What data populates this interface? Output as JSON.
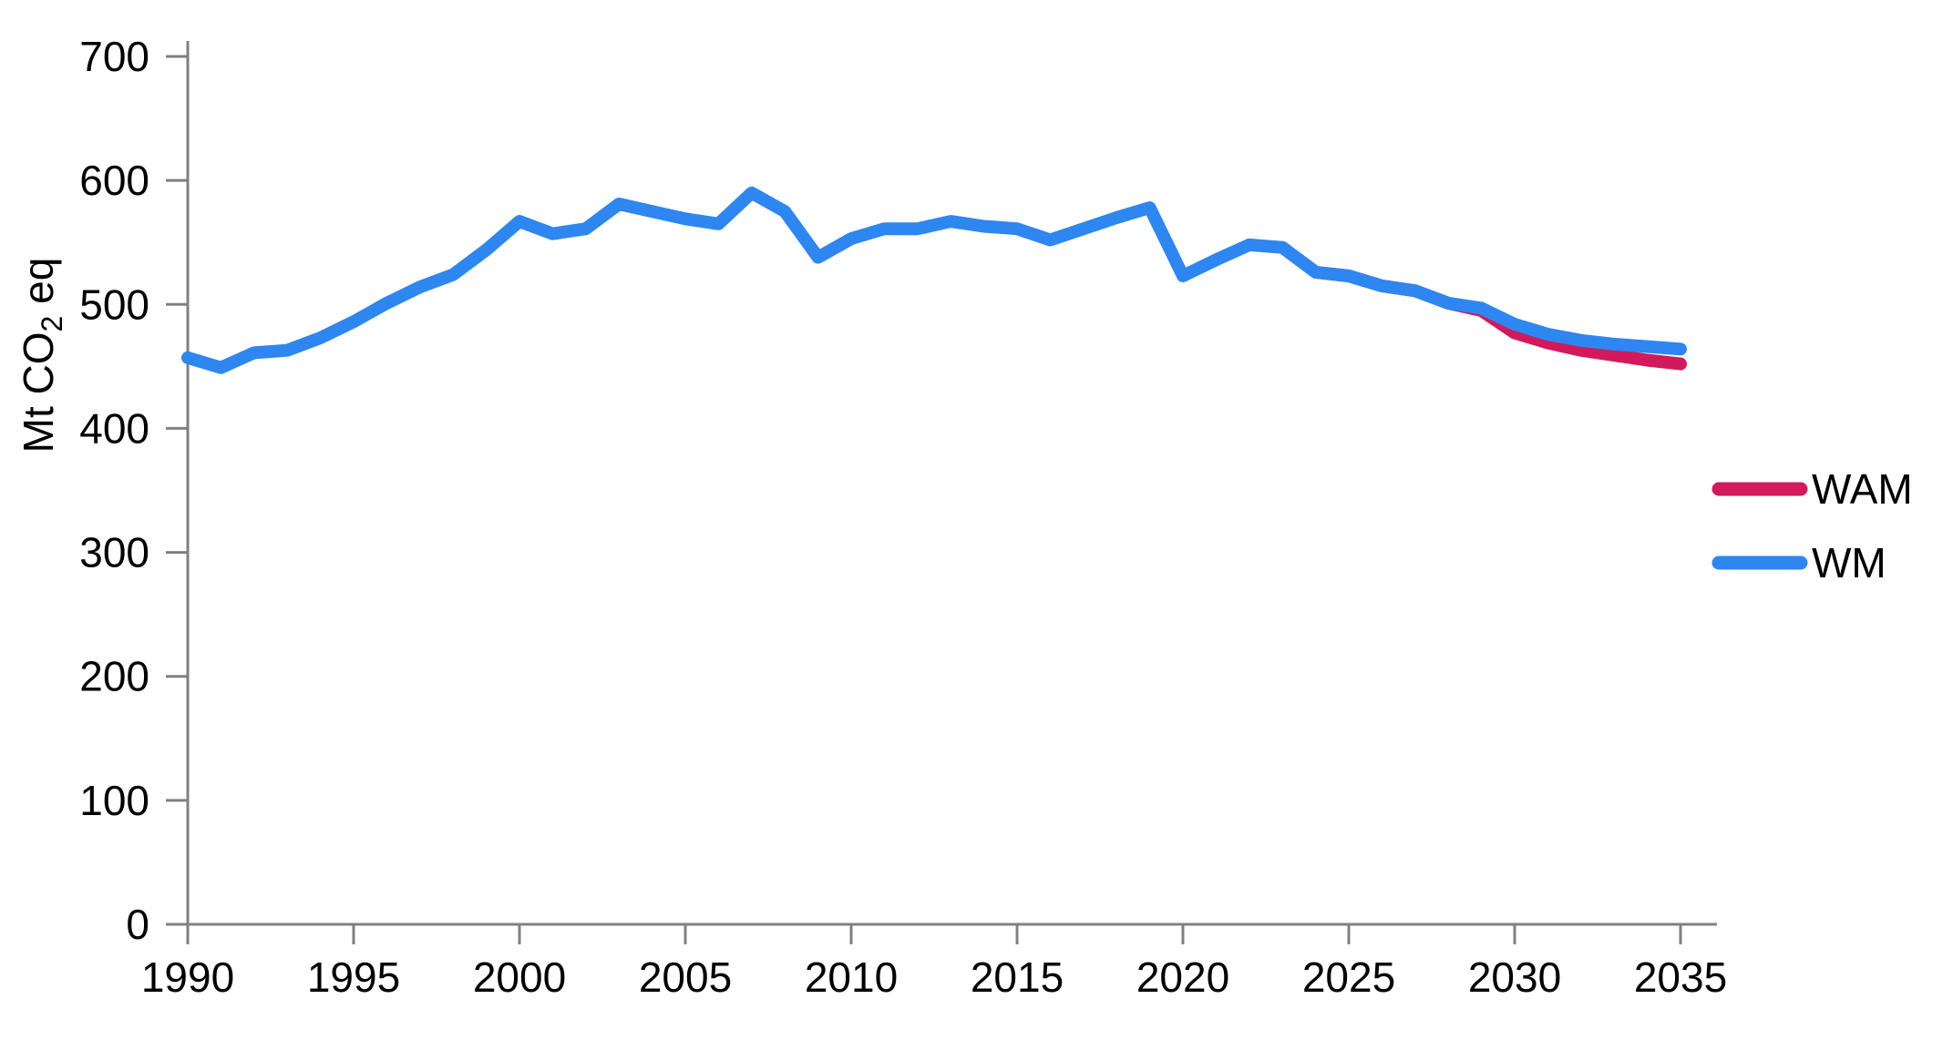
{
  "chart_data": {
    "type": "line",
    "title": "",
    "xlabel": "",
    "ylabel": "Mt CO2 eq",
    "ylabel_parts": {
      "pre": "Mt CO",
      "sub": "2",
      "post": " eq"
    },
    "xlim": [
      1990,
      2035
    ],
    "ylim": [
      0,
      700
    ],
    "xticks": [
      1990,
      1995,
      2000,
      2005,
      2010,
      2015,
      2020,
      2025,
      2030,
      2035
    ],
    "yticks": [
      0,
      100,
      200,
      300,
      400,
      500,
      600,
      700
    ],
    "grid": false,
    "legend_position": "right",
    "axis_color": "#808080",
    "series": [
      {
        "name": "WAM",
        "color": "#D2195B",
        "x": [
          2023,
          2024,
          2025,
          2026,
          2027,
          2028,
          2029,
          2030,
          2031,
          2032,
          2033,
          2034,
          2035
        ],
        "values": [
          546,
          526,
          523,
          515,
          511,
          501,
          495,
          477,
          469,
          463,
          459,
          455,
          452
        ]
      },
      {
        "name": "WM",
        "color": "#2E86F0",
        "x": [
          1990,
          1991,
          1992,
          1993,
          1994,
          1995,
          1996,
          1997,
          1998,
          1999,
          2000,
          2001,
          2002,
          2003,
          2004,
          2005,
          2006,
          2007,
          2008,
          2009,
          2010,
          2011,
          2012,
          2013,
          2014,
          2015,
          2016,
          2017,
          2018,
          2019,
          2020,
          2021,
          2022,
          2023,
          2024,
          2025,
          2026,
          2027,
          2028,
          2029,
          2030,
          2031,
          2032,
          2033,
          2034,
          2035
        ],
        "values": [
          457,
          449,
          461,
          463,
          473,
          486,
          501,
          514,
          524,
          544,
          567,
          557,
          561,
          581,
          575,
          569,
          565,
          590,
          575,
          538,
          553,
          561,
          561,
          567,
          563,
          561,
          552,
          561,
          570,
          578,
          523,
          536,
          548,
          546,
          526,
          523,
          515,
          511,
          501,
          497,
          484,
          476,
          471,
          468,
          466,
          464
        ]
      }
    ]
  },
  "legend": {
    "items": [
      {
        "label": "WAM",
        "color": "#D2195B"
      },
      {
        "label": "WM",
        "color": "#2E86F0"
      }
    ]
  }
}
